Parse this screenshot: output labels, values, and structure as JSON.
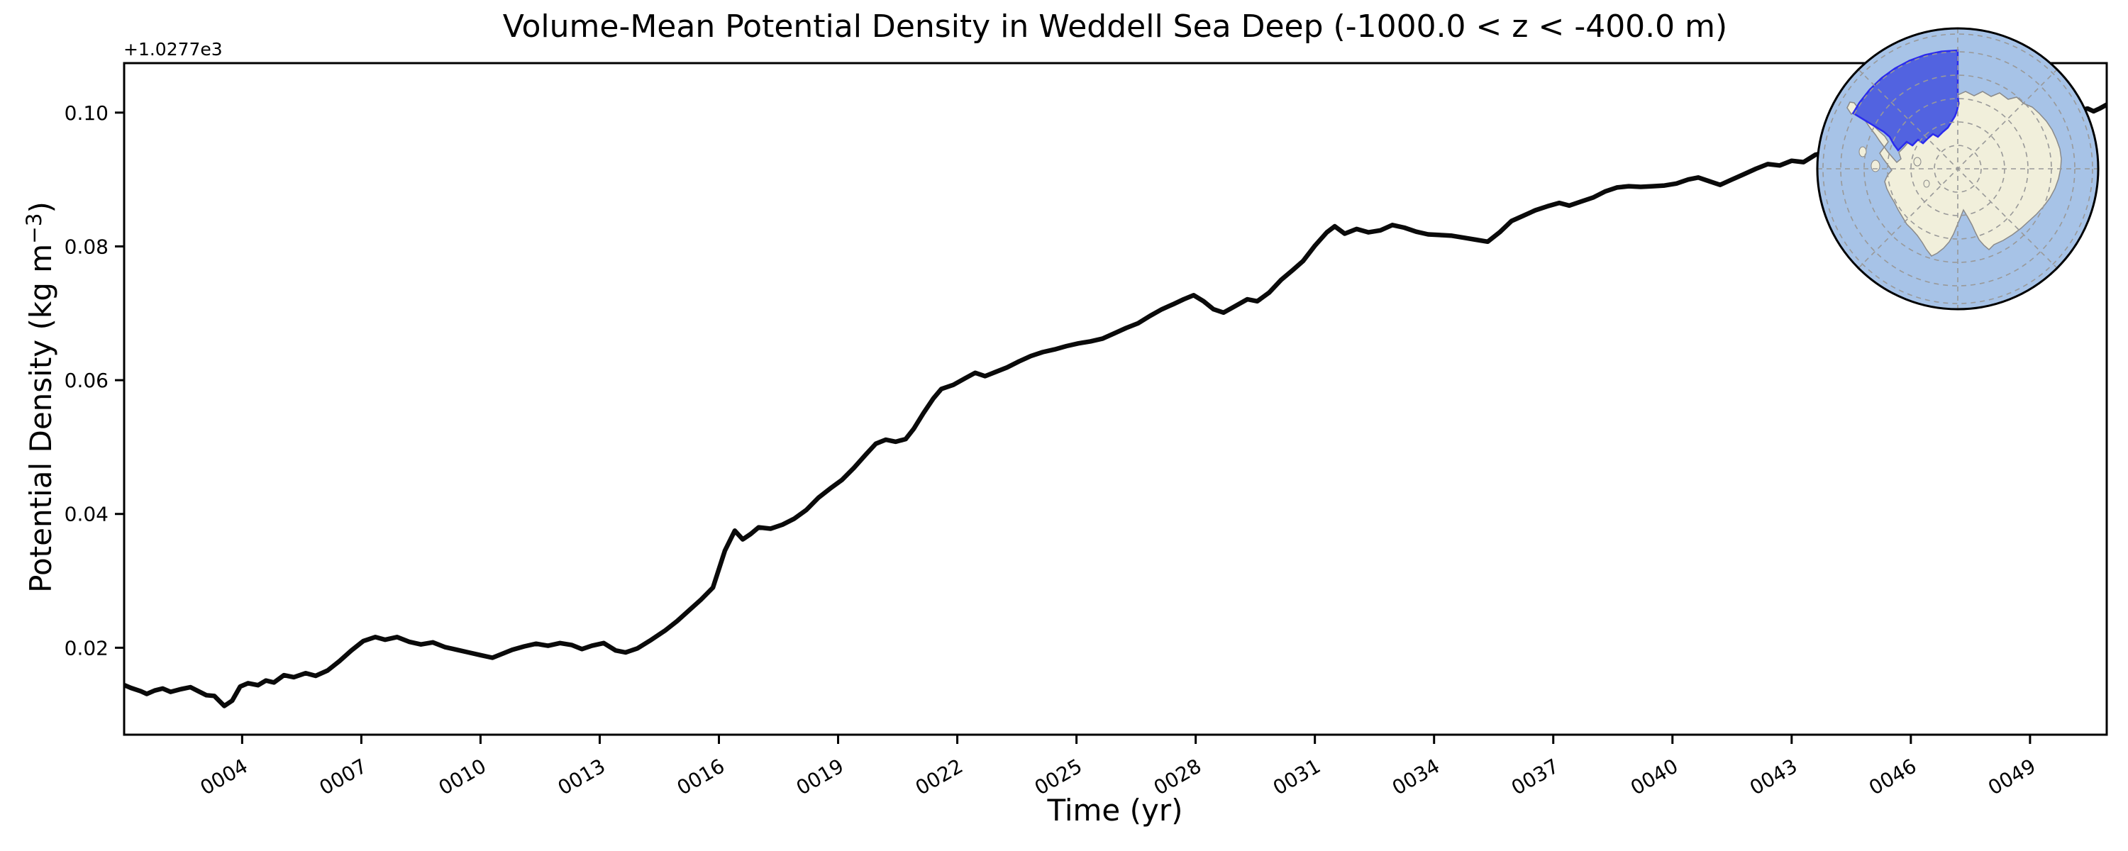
{
  "figure": {
    "title": "Volume-Mean Potential Density in Weddell Sea Deep (-1000.0 < z < -400.0 m)",
    "offset_text": "+1.0277e3",
    "xlabel": "Time (yr)",
    "ylabel_pre": "Potential Density (kg m",
    "ylabel_sup": "−3",
    "ylabel_post": ")",
    "background_color": "#ffffff",
    "line_color": "#0a0a0a",
    "spine_color": "#000000"
  },
  "chart_data": {
    "type": "line",
    "title": "Volume-Mean Potential Density in Weddell Sea Deep (-1000.0 < z < -400.0 m)",
    "xlabel": "Time (yr)",
    "ylabel": "Potential Density (kg m^-3)",
    "y_offset_note": "y values are offsets from +1.0277e3 kg m^-3 (matplotlib offset text)",
    "y_offset_base": 1027.7,
    "xlim": [
      1.03,
      50.93
    ],
    "ylim": [
      0.007,
      0.1074
    ],
    "grid": false,
    "legend": "none",
    "x_tick_years": [
      4,
      7,
      10,
      13,
      16,
      19,
      22,
      25,
      28,
      31,
      34,
      37,
      40,
      43,
      46,
      49
    ],
    "x_tick_labels": [
      "0004",
      "0007",
      "0010",
      "0013",
      "0016",
      "0019",
      "0022",
      "0025",
      "0028",
      "0031",
      "0034",
      "0037",
      "0040",
      "0043",
      "0046",
      "0049"
    ],
    "x_tick_rotation_deg": 30,
    "y_ticks": [
      0.02,
      0.04,
      0.06,
      0.08,
      0.1
    ],
    "y_tick_labels": [
      "0.02",
      "0.04",
      "0.06",
      "0.08",
      "0.10"
    ],
    "series": [
      {
        "name": "volume-mean potential density",
        "color": "#0a0a0a",
        "x": [
          1.04,
          1.2,
          1.45,
          1.6,
          1.8,
          2.0,
          2.2,
          2.45,
          2.7,
          2.9,
          3.1,
          3.3,
          3.55,
          3.75,
          3.95,
          4.15,
          4.4,
          4.6,
          4.8,
          5.05,
          5.3,
          5.6,
          5.85,
          6.15,
          6.45,
          6.75,
          7.05,
          7.35,
          7.6,
          7.9,
          8.2,
          8.5,
          8.8,
          9.1,
          9.4,
          9.7,
          10.0,
          10.3,
          10.55,
          10.8,
          11.1,
          11.4,
          11.7,
          12.0,
          12.3,
          12.55,
          12.8,
          13.1,
          13.4,
          13.65,
          13.95,
          14.3,
          14.65,
          14.95,
          15.25,
          15.55,
          15.85,
          16.15,
          16.4,
          16.6,
          16.8,
          17.0,
          17.3,
          17.6,
          17.9,
          18.2,
          18.5,
          18.8,
          19.1,
          19.4,
          19.7,
          19.95,
          20.2,
          20.45,
          20.7,
          20.9,
          21.15,
          21.4,
          21.6,
          21.9,
          22.2,
          22.45,
          22.7,
          22.95,
          23.25,
          23.55,
          23.85,
          24.15,
          24.45,
          24.75,
          25.05,
          25.35,
          25.65,
          25.95,
          26.25,
          26.55,
          26.85,
          27.15,
          27.45,
          27.7,
          27.95,
          28.2,
          28.45,
          28.7,
          29.0,
          29.3,
          29.55,
          29.85,
          30.15,
          30.45,
          30.7,
          31.0,
          31.3,
          31.5,
          31.75,
          32.05,
          32.35,
          32.65,
          32.95,
          33.25,
          33.55,
          33.85,
          34.15,
          34.45,
          34.75,
          35.05,
          35.35,
          35.65,
          35.95,
          36.25,
          36.55,
          36.85,
          37.15,
          37.4,
          37.7,
          38.0,
          38.3,
          38.6,
          38.9,
          39.2,
          39.5,
          39.8,
          40.1,
          40.4,
          40.65,
          40.95,
          41.2,
          41.5,
          41.8,
          42.1,
          42.4,
          42.7,
          43.0,
          43.3,
          43.6,
          43.9,
          44.3,
          44.7,
          45.1,
          45.5,
          45.9,
          46.3,
          46.7,
          47.1,
          47.5,
          47.9,
          48.3,
          48.7,
          49.1,
          49.5,
          49.9,
          50.2,
          50.45,
          50.6,
          50.75,
          50.93
        ],
        "y": [
          0.0144,
          0.014,
          0.0135,
          0.0131,
          0.0136,
          0.0139,
          0.0134,
          0.0138,
          0.0141,
          0.0135,
          0.0129,
          0.0128,
          0.0113,
          0.0121,
          0.0142,
          0.0147,
          0.0144,
          0.0151,
          0.0148,
          0.0159,
          0.0156,
          0.0162,
          0.0158,
          0.0166,
          0.018,
          0.0196,
          0.021,
          0.0216,
          0.0212,
          0.0216,
          0.0209,
          0.0205,
          0.0208,
          0.0201,
          0.0197,
          0.0193,
          0.0189,
          0.0185,
          0.0191,
          0.0197,
          0.0202,
          0.0206,
          0.0203,
          0.0207,
          0.0204,
          0.0198,
          0.0203,
          0.0207,
          0.0196,
          0.0193,
          0.0199,
          0.0212,
          0.0226,
          0.024,
          0.0256,
          0.0272,
          0.029,
          0.0345,
          0.0375,
          0.0362,
          0.037,
          0.038,
          0.0378,
          0.0384,
          0.0393,
          0.0406,
          0.0424,
          0.0438,
          0.0451,
          0.0469,
          0.0489,
          0.0505,
          0.0511,
          0.0508,
          0.0512,
          0.0527,
          0.0551,
          0.0573,
          0.0587,
          0.0593,
          0.0603,
          0.0611,
          0.0606,
          0.0612,
          0.0619,
          0.0628,
          0.0636,
          0.0642,
          0.0646,
          0.0651,
          0.0655,
          0.0658,
          0.0662,
          0.067,
          0.0678,
          0.0685,
          0.0696,
          0.0706,
          0.0714,
          0.0721,
          0.0727,
          0.0718,
          0.0706,
          0.0701,
          0.0711,
          0.0721,
          0.0718,
          0.0731,
          0.075,
          0.0765,
          0.0778,
          0.0801,
          0.0821,
          0.083,
          0.0819,
          0.0826,
          0.0821,
          0.0824,
          0.0832,
          0.0828,
          0.0822,
          0.0818,
          0.0817,
          0.0816,
          0.0813,
          0.081,
          0.0807,
          0.0821,
          0.0838,
          0.0846,
          0.0854,
          0.086,
          0.0865,
          0.0861,
          0.0867,
          0.0873,
          0.0882,
          0.0888,
          0.089,
          0.0889,
          0.089,
          0.0891,
          0.0894,
          0.09,
          0.0903,
          0.0897,
          0.0892,
          0.09,
          0.0908,
          0.0916,
          0.0923,
          0.0921,
          0.0928,
          0.0926,
          0.0937,
          0.0941,
          0.0945,
          0.095,
          0.0953,
          0.0957,
          0.0961,
          0.0965,
          0.0969,
          0.0972,
          0.0976,
          0.098,
          0.0984,
          0.0988,
          0.0992,
          0.0996,
          0.1,
          0.1003,
          0.1006,
          0.1002,
          0.1006,
          0.1012
        ]
      }
    ]
  },
  "inset_map": {
    "description": "South polar view of Antarctica with Weddell Sea sector highlighted",
    "region_name": "Weddell Sea",
    "ocean_color": "#a7c3e7",
    "land_color": "#f1efdb",
    "coast_color": "#8a8a8a",
    "region_fill": "#5263e0",
    "region_border": "#2b2bee",
    "grid_color": "#999999",
    "border_color": "#000000"
  }
}
